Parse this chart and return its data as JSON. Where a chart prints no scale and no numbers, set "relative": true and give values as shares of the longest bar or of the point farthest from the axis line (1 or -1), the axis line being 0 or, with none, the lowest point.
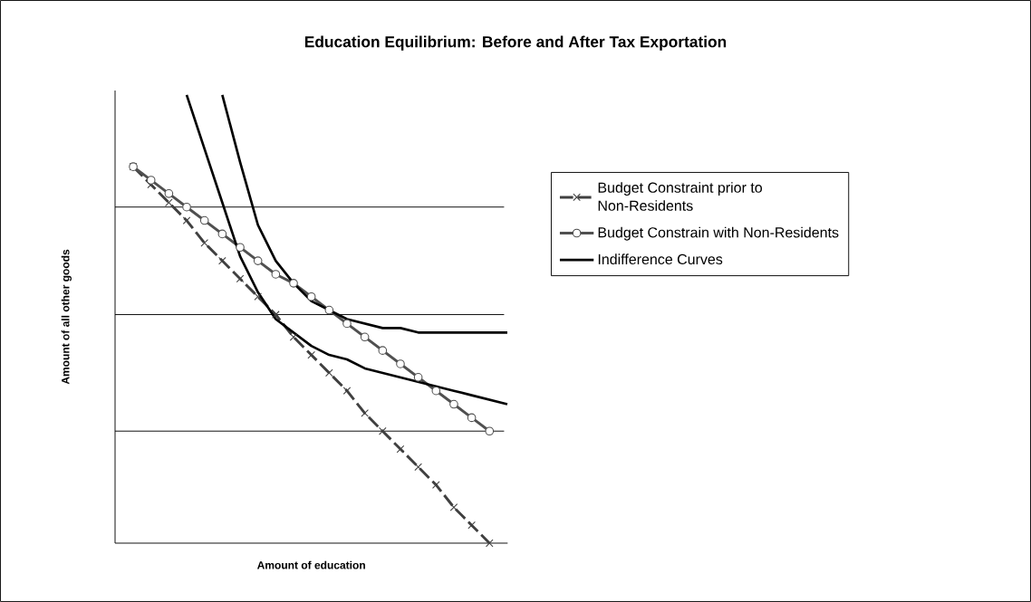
{
  "chart_data": {
    "type": "line",
    "title": "Education Equilibrium: Before and After Tax Exportation",
    "xlabel": "Amount of education",
    "ylabel": "Amount of all other goods",
    "relative": true,
    "legend": "right",
    "categories": [
      null,
      null,
      null,
      null,
      null,
      null,
      null,
      null,
      null,
      null,
      null,
      null,
      null,
      null,
      null,
      null,
      null,
      null,
      null,
      null,
      null,
      null
    ],
    "series": [
      {
        "name": "Budget Constraint prior to Non-Residents",
        "color": "#404040",
        "marker": "cross",
        "line_style": "dashed",
        "values": [
          0.84,
          0.8,
          0.76,
          0.72,
          0.67,
          0.63,
          0.59,
          0.55,
          0.51,
          0.46,
          0.42,
          0.38,
          0.34,
          0.29,
          0.25,
          0.21,
          0.17,
          0.13,
          0.08,
          0.04,
          0,
          null
        ]
      },
      {
        "name": "Budget Constrain with Non-Residents",
        "color": "#505050",
        "marker": "circle",
        "line_style": "solid",
        "values": [
          0.84,
          0.81,
          0.78,
          0.75,
          0.72,
          0.69,
          0.66,
          0.63,
          0.6,
          0.58,
          0.55,
          0.52,
          0.49,
          0.46,
          0.43,
          0.4,
          0.37,
          0.34,
          0.31,
          0.28,
          0.25,
          null
        ]
      },
      {
        "name": "Indifference Curves",
        "color": "#000000",
        "marker": "none",
        "line_style": "solid",
        "values": [
          null,
          null,
          null,
          1.0,
          0.88,
          0.76,
          0.64,
          0.56,
          0.5,
          0.47,
          0.44,
          0.42,
          0.41,
          0.39,
          0.38,
          0.37,
          0.36,
          0.35,
          0.34,
          0.33,
          0.32,
          0.31
        ]
      },
      {
        "color": "#000000",
        "marker": "none",
        "line_style": "solid",
        "values": [
          null,
          null,
          null,
          null,
          null,
          1.0,
          0.85,
          0.71,
          0.63,
          0.58,
          0.54,
          0.52,
          0.5,
          0.49,
          0.48,
          0.48,
          0.47,
          0.47,
          0.47,
          0.47,
          0.47,
          0.47
        ]
      }
    ],
    "ref_lines": [
      {
        "axis": "y",
        "value": 0.75,
        "color": "#000000"
      },
      {
        "axis": "y",
        "value": 0.51,
        "color": "#000000"
      },
      {
        "axis": "y",
        "value": 0.25,
        "color": "#000000"
      }
    ]
  }
}
